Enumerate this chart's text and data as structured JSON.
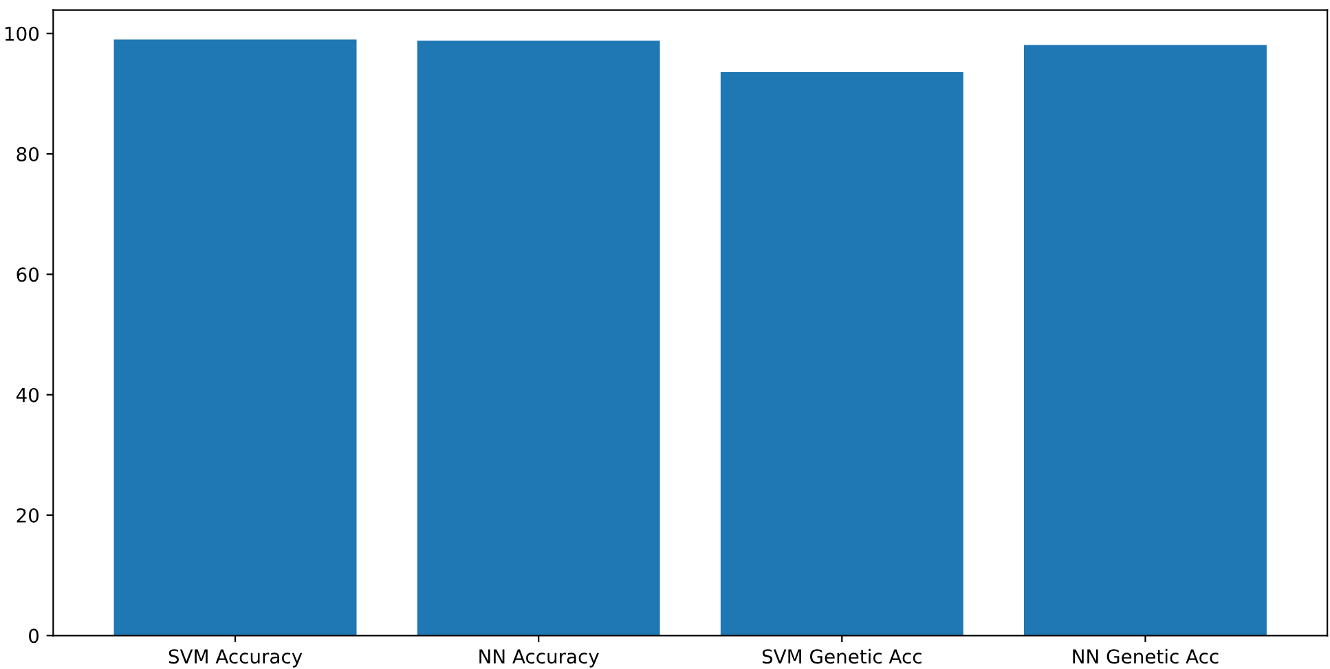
{
  "chart_data": {
    "type": "bar",
    "categories": [
      "SVM Accuracy",
      "NN Accuracy",
      "SVM Genetic Acc",
      "NN Genetic Acc"
    ],
    "values": [
      99.0,
      98.8,
      93.6,
      98.1
    ],
    "color": "#1f77b4",
    "ylim": [
      0,
      103.9
    ],
    "yticks": [
      0,
      20,
      40,
      60,
      80,
      100
    ],
    "grid": false
  }
}
